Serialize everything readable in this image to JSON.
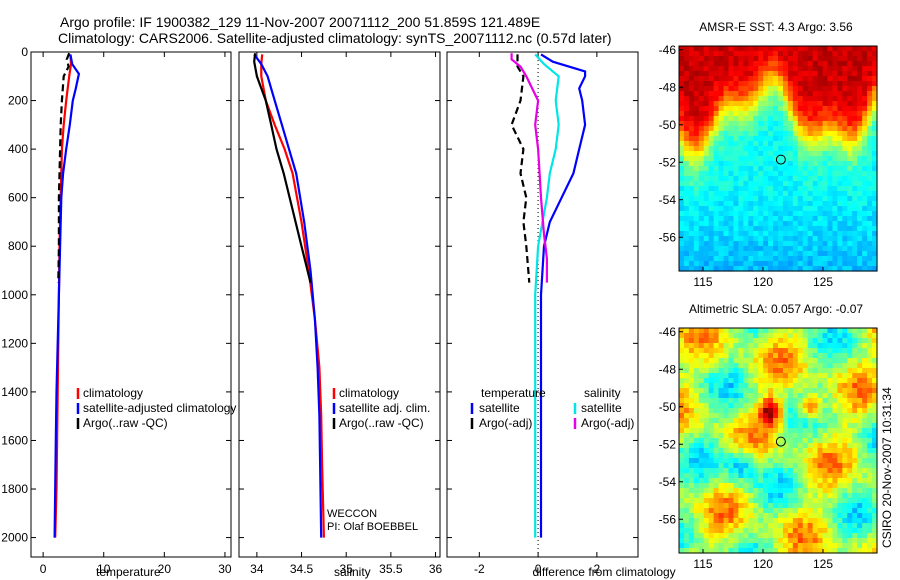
{
  "figure": {
    "title_line1": "Argo profile: IF 1900382_129 11-Nov-2007 20071112_200 51.859S 121.489E",
    "title_line2": "Climatology: CARS2006. Satellite-adjusted climatology: synTS_20071112.nc (0.57d later)",
    "side_label": "CSIRO 20-Nov-2007 10:31:34",
    "credit_line1": "WECCON",
    "credit_line2": "PI: Olaf BOEBBEL"
  },
  "colors": {
    "climatology": "#ff0000",
    "satellite": "#0000ff",
    "argo": "#000000",
    "salinity_satellite": "#00e5e5",
    "salinity_argo": "#e600e6"
  },
  "chart_data": [
    {
      "type": "line",
      "id": "temperature",
      "xlabel": "temperature",
      "xlim": [
        -2,
        31
      ],
      "ylim": [
        2080,
        0
      ],
      "xticks": [
        0,
        10,
        20,
        30
      ],
      "yticks": [
        0,
        200,
        400,
        600,
        800,
        1000,
        1200,
        1400,
        1600,
        1800,
        2000
      ],
      "legend": [
        "climatology",
        "satellite-adjusted climatology",
        "Argo(..raw -QC)"
      ],
      "series": [
        {
          "name": "climatology",
          "color": "#ff0000",
          "dash": false,
          "x": [
            4.5,
            4.6,
            4.3,
            3.8,
            3.4,
            3.1,
            2.9,
            2.7,
            2.6,
            2.5,
            2.4,
            2.3,
            2.2,
            2.0
          ],
          "y": [
            10,
            50,
            100,
            200,
            300,
            400,
            600,
            800,
            1000,
            1200,
            1400,
            1600,
            1800,
            2000
          ]
        },
        {
          "name": "satellite-adjusted climatology",
          "color": "#0000ff",
          "dash": false,
          "x": [
            4.5,
            4.8,
            5.9,
            5.4,
            4.9,
            4.4,
            3.8,
            3.3,
            3.0,
            2.8,
            2.6,
            2.4,
            2.2,
            2.1,
            2.0,
            1.9
          ],
          "y": [
            10,
            50,
            90,
            150,
            200,
            300,
            400,
            500,
            600,
            800,
            1000,
            1200,
            1400,
            1600,
            1800,
            2000
          ]
        },
        {
          "name": "Argo(..raw -QC)",
          "color": "#000000",
          "dash": true,
          "x": [
            4.3,
            3.9,
            4.2,
            3.4,
            3.1,
            2.9,
            2.8,
            2.6,
            2.6,
            2.5
          ],
          "y": [
            5,
            30,
            60,
            100,
            200,
            300,
            400,
            600,
            800,
            950
          ]
        }
      ]
    },
    {
      "type": "line",
      "id": "salinity",
      "xlabel": "salinity",
      "xlim": [
        33.8,
        36.05
      ],
      "ylim": [
        2080,
        0
      ],
      "xticks": [
        34,
        34.5,
        35,
        35.5,
        36
      ],
      "legend": [
        "climatology",
        "satellite adj. clim.",
        "Argo(..raw -QC)"
      ],
      "series": [
        {
          "name": "climatology",
          "color": "#ff0000",
          "dash": false,
          "x": [
            34.06,
            34.05,
            34.05,
            34.1,
            34.2,
            34.31,
            34.4,
            34.5,
            34.58,
            34.65,
            34.7,
            34.72,
            34.73,
            34.75
          ],
          "y": [
            10,
            50,
            100,
            200,
            300,
            400,
            500,
            700,
            900,
            1100,
            1300,
            1500,
            1700,
            2000
          ]
        },
        {
          "name": "satellite adj. clim.",
          "color": "#0000ff",
          "dash": false,
          "x": [
            33.97,
            34.05,
            34.12,
            34.2,
            34.28,
            34.36,
            34.44,
            34.53,
            34.6,
            34.65,
            34.68,
            34.7,
            34.72
          ],
          "y": [
            10,
            50,
            100,
            200,
            300,
            400,
            500,
            700,
            900,
            1100,
            1300,
            1500,
            2000
          ]
        },
        {
          "name": "Argo(..raw -QC)",
          "color": "#000000",
          "dash": false,
          "x": [
            33.98,
            33.97,
            34.0,
            34.05,
            34.1,
            34.16,
            34.22,
            34.3,
            34.4,
            34.5,
            34.6
          ],
          "y": [
            5,
            40,
            100,
            150,
            200,
            300,
            400,
            500,
            650,
            800,
            950
          ]
        }
      ]
    },
    {
      "type": "line",
      "id": "difference",
      "xlabel": "difference from climatology",
      "xlim": [
        -3.1,
        3.4
      ],
      "ylim": [
        2080,
        0
      ],
      "xticks": [
        -2,
        0,
        2
      ],
      "legend": [
        "temperature",
        "satellite",
        "Argo(-adj)",
        "salinity",
        "satellite",
        "Argo(-adj)"
      ],
      "series": [
        {
          "name": "satellite",
          "group": "temperature",
          "color": "#0000ff",
          "dash": false,
          "x": [
            0.1,
            0.5,
            1.6,
            1.6,
            1.4,
            1.5,
            1.6,
            1.4,
            1.2,
            0.8,
            0.4,
            0.2,
            0.1,
            0.1,
            0.1,
            0.1
          ],
          "y": [
            10,
            40,
            80,
            100,
            150,
            200,
            300,
            400,
            500,
            600,
            700,
            800,
            1000,
            1200,
            1600,
            2000
          ]
        },
        {
          "name": "Argo(-adj)",
          "group": "temperature",
          "color": "#000000",
          "dash": true,
          "x": [
            -0.7,
            -0.7,
            -0.5,
            -0.6,
            -0.9,
            -0.5,
            -0.6,
            -0.4,
            -0.5,
            -0.4,
            -0.3
          ],
          "y": [
            10,
            60,
            100,
            200,
            300,
            400,
            500,
            600,
            700,
            800,
            950
          ]
        },
        {
          "name": "satellite",
          "group": "salinity",
          "color": "#00e5e5",
          "dash": false,
          "x": [
            -0.1,
            0.2,
            0.7,
            0.6,
            0.7,
            0.6,
            0.4,
            0.3,
            0.0,
            -0.1,
            -0.1,
            -0.1,
            -0.1,
            -0.1
          ],
          "y": [
            10,
            50,
            100,
            200,
            300,
            400,
            500,
            600,
            800,
            1000,
            1200,
            1500,
            1800,
            2000
          ]
        },
        {
          "name": "Argo(-adj)",
          "group": "salinity",
          "color": "#e600e6",
          "dash": false,
          "x": [
            -0.9,
            -0.9,
            -0.6,
            -0.4,
            0.0,
            -0.1,
            0.0,
            0.05,
            0.1,
            0.2,
            0.3,
            0.3
          ],
          "y": [
            5,
            30,
            60,
            100,
            200,
            300,
            400,
            500,
            600,
            750,
            850,
            950
          ]
        }
      ]
    },
    {
      "type": "heatmap",
      "id": "sst_map",
      "title": "AMSR-E SST: 4.3 Argo: 3.56",
      "xlim": [
        113,
        129.5
      ],
      "ylim": [
        -57.8,
        -45.8
      ],
      "xticks": [
        115,
        120,
        125
      ],
      "yticks": [
        -46,
        -48,
        -50,
        -52,
        -54,
        -56
      ],
      "marker": {
        "lon": 121.489,
        "lat": -51.859
      }
    },
    {
      "type": "heatmap",
      "id": "sla_map",
      "title": "Altimetric SLA: 0.057 Argo: -0.07",
      "xlim": [
        113,
        129.5
      ],
      "ylim": [
        -57.8,
        -45.8
      ],
      "xticks": [
        115,
        120,
        125
      ],
      "yticks": [
        -46,
        -48,
        -50,
        -52,
        -54,
        -56
      ],
      "marker": {
        "lon": 121.489,
        "lat": -51.859
      }
    }
  ]
}
